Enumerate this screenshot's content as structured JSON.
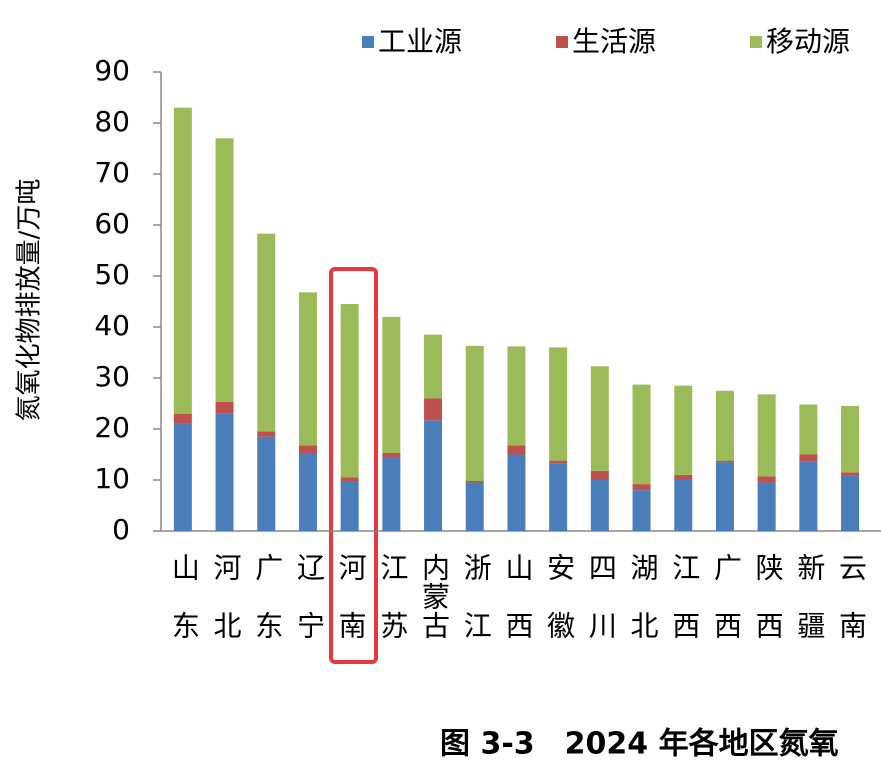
{
  "chart_data": {
    "type": "stacked_bar",
    "y_label": "氮氧化物排放量/万吨",
    "caption": "图 3-3　2024 年各地区氮氧",
    "categories": [
      "山东",
      "河北",
      "广东",
      "辽宁",
      "河南",
      "江苏",
      "内蒙古",
      "浙江",
      "山西",
      "安徽",
      "四川",
      "湖北",
      "江西",
      "广西",
      "陕西",
      "新疆",
      "云南"
    ],
    "series": [
      {
        "name": "工业源",
        "color": "#4a7ebb",
        "values": [
          21,
          23,
          18.5,
          15.3,
          9.8,
          14.5,
          21.7,
          9.5,
          15,
          13.3,
          10,
          8,
          10,
          13.5,
          9.5,
          13.7,
          10.8
        ]
      },
      {
        "name": "生活源",
        "color": "#c0504d",
        "values": [
          2,
          2.3,
          1,
          1.5,
          0.7,
          0.8,
          4.3,
          0.3,
          1.8,
          0.5,
          1.8,
          1.2,
          1,
          0.3,
          1.2,
          1.3,
          0.7
        ]
      },
      {
        "name": "移动源",
        "color": "#9bbb59",
        "values": [
          60,
          51.7,
          38.8,
          30,
          34,
          26.7,
          12.5,
          26.5,
          19.4,
          22.2,
          20.5,
          19.5,
          17.5,
          13.7,
          16.1,
          9.8,
          13
        ]
      }
    ],
    "ylim": [
      0,
      90
    ],
    "yticks": [
      0,
      10,
      20,
      30,
      40,
      50,
      60,
      70,
      80,
      90
    ]
  }
}
